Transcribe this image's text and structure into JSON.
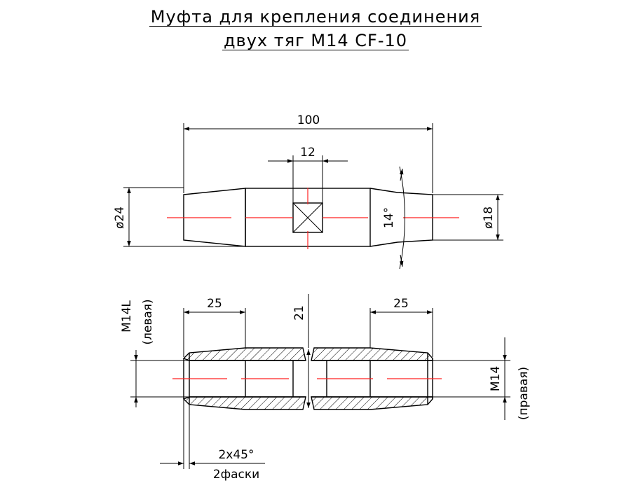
{
  "title": {
    "line1": "Муфта для крепления соединения",
    "line2": "двух тяг М14 CF-10"
  },
  "top_view": {
    "overall_length": "100",
    "center_hole": "12",
    "left_diameter": "ø24",
    "right_diameter": "ø18",
    "taper_angle": "14°"
  },
  "section_view": {
    "left_thread_length": "25",
    "right_thread_length": "25",
    "center_thread": "21",
    "left_thread": "М14L",
    "left_thread_note": "(левая)",
    "right_thread": "М14",
    "right_thread_note": "(правая)",
    "chamfer_size": "2х45°",
    "chamfer_note": "2фаски"
  },
  "colors": {
    "lines": "#000000",
    "axis": "#ff2020",
    "background": "#ffffff"
  }
}
